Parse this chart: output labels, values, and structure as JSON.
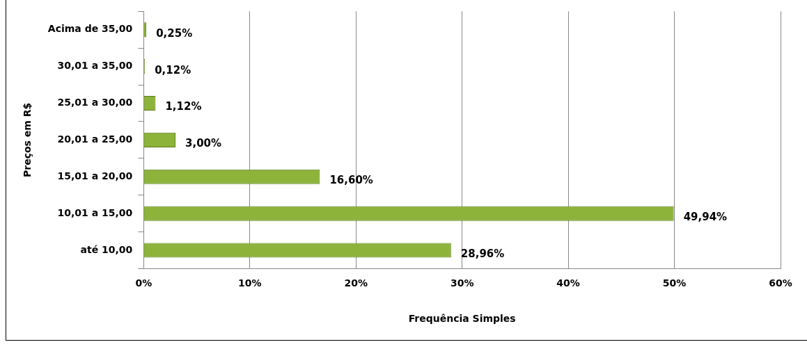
{
  "chart_data": {
    "type": "bar",
    "orientation": "horizontal",
    "xlabel": "Frequência Simples",
    "ylabel": "Preços em R$",
    "categories": [
      "Acima de 35,00",
      "30,01 a 35,00",
      "25,01 a 30,00",
      "20,01 a 25,00",
      "15,01 a 20,00",
      "10,01 a 15,00",
      "até 10,00"
    ],
    "values": [
      0.25,
      0.12,
      1.12,
      3.0,
      16.6,
      49.94,
      28.96
    ],
    "value_labels": [
      "0,25%",
      "0,12%",
      "1,12%",
      "3,00%",
      "16,60%",
      "49,94%",
      "28,96%"
    ],
    "color": "#8db33a",
    "xlim": [
      0,
      60
    ],
    "xticks": [
      {
        "value": 0,
        "label": "0%"
      },
      {
        "value": 10,
        "label": "10%"
      },
      {
        "value": 20,
        "label": "20%"
      },
      {
        "value": 30,
        "label": "30%"
      },
      {
        "value": 40,
        "label": "40%"
      },
      {
        "value": 50,
        "label": "50%"
      },
      {
        "value": 60,
        "label": "60%"
      }
    ],
    "grid": "x",
    "legend": false
  }
}
